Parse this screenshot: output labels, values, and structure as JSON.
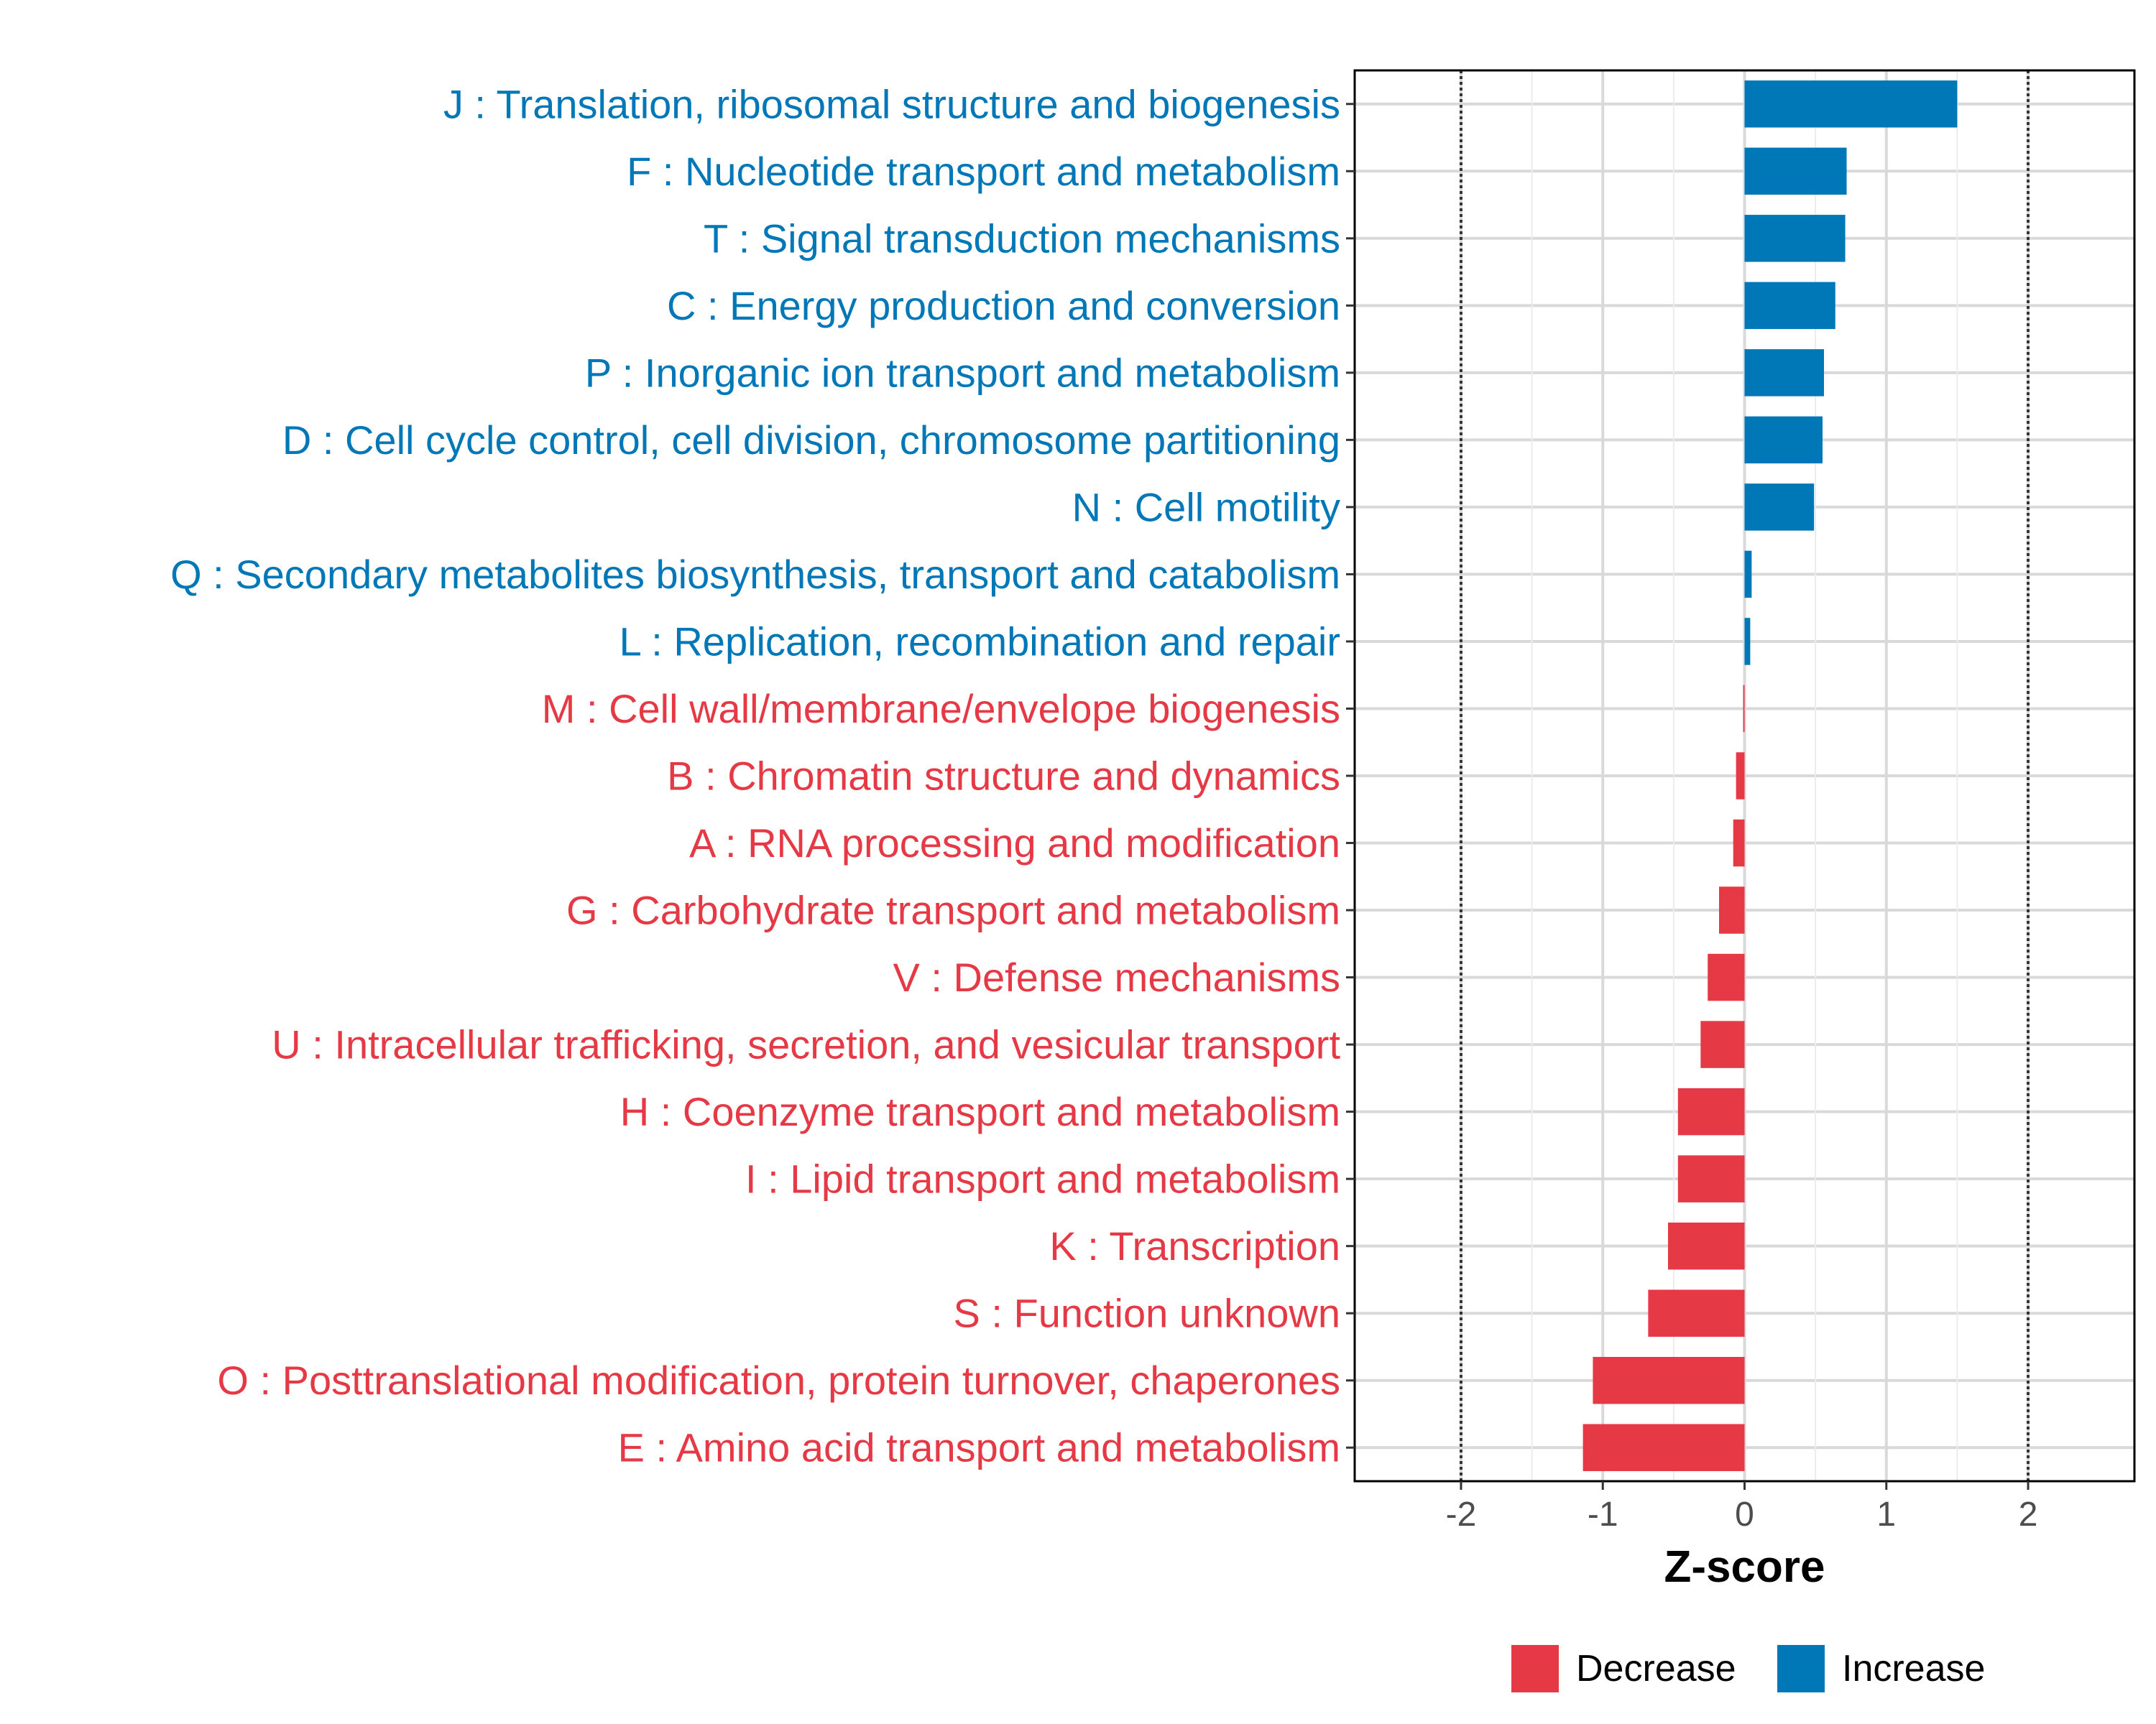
{
  "chart_data": {
    "type": "bar",
    "orientation": "horizontal",
    "xlabel": "Z-score",
    "xlim": [
      -2.75,
      2.75
    ],
    "x_ticks": [
      -2,
      -1,
      0,
      1,
      2
    ],
    "x_tick_labels": [
      "-2",
      "-1",
      "0",
      "1",
      "2"
    ],
    "reference_lines": [
      -2,
      2
    ],
    "grid": true,
    "legend_position": "bottom",
    "legend": [
      {
        "name": "Decrease",
        "color": "#E63946"
      },
      {
        "name": "Increase",
        "color": "#0077B6"
      }
    ],
    "categories": [
      "J : Translation, ribosomal structure and biogenesis",
      "F : Nucleotide transport and metabolism",
      "T : Signal transduction mechanisms",
      "C : Energy production and conversion",
      "P : Inorganic ion transport and metabolism",
      "D : Cell cycle control, cell division, chromosome partitioning",
      "N : Cell motility",
      "Q : Secondary metabolites biosynthesis, transport and catabolism",
      "L : Replication, recombination and repair",
      "M : Cell wall/membrane/envelope biogenesis",
      "B : Chromatin structure and dynamics",
      "A : RNA processing and modification",
      "G : Carbohydrate transport and metabolism",
      "V : Defense mechanisms",
      "U : Intracellular trafficking, secretion, and vesicular transport",
      "H : Coenzyme transport and metabolism",
      "I : Lipid transport and metabolism",
      "K : Transcription",
      "S : Function unknown",
      "O : Posttranslational modification, protein turnover, chaperones",
      "E : Amino acid transport and metabolism"
    ],
    "values": [
      1.5,
      0.72,
      0.71,
      0.64,
      0.56,
      0.55,
      0.49,
      0.05,
      0.04,
      -0.01,
      -0.06,
      -0.08,
      -0.18,
      -0.26,
      -0.31,
      -0.47,
      -0.47,
      -0.54,
      -0.68,
      -1.07,
      -1.14
    ],
    "groups": [
      "Increase",
      "Increase",
      "Increase",
      "Increase",
      "Increase",
      "Increase",
      "Increase",
      "Increase",
      "Increase",
      "Decrease",
      "Decrease",
      "Decrease",
      "Decrease",
      "Decrease",
      "Decrease",
      "Decrease",
      "Decrease",
      "Decrease",
      "Decrease",
      "Decrease",
      "Decrease"
    ]
  }
}
